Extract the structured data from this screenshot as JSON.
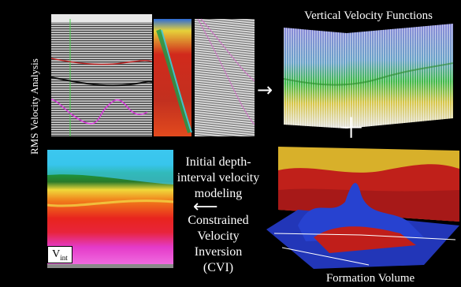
{
  "labels": {
    "rms_velocity_analysis": "RMS Velocity Analysis",
    "vertical_velocity_functions": "Vertical  Velocity Functions",
    "initial_modeling_line1": "Initial depth-",
    "initial_modeling_line2": "interval velocity",
    "initial_modeling_line3": "modeling",
    "cvi_line1": "Constrained",
    "cvi_line2": "Velocity",
    "cvi_line3": "Inversion",
    "cvi_line4": "(CVI)",
    "formation_volume": "Formation Volume",
    "vint_main": "V",
    "vint_sub": "int"
  },
  "symbols": {
    "plus": "+",
    "arrow_right": "→",
    "arrow_left": "⟵"
  },
  "colors": {
    "background": "#000000",
    "text": "#ffffff",
    "seismic_gray": "#9a9a9a",
    "velocity_red": "#d8201c",
    "velocity_green": "#2a9a3a",
    "velocity_cyan": "#2bc7e6",
    "velocity_magenta": "#e22fd0",
    "formation_blue": "#2236b8",
    "formation_yellow": "#d8b02a"
  }
}
